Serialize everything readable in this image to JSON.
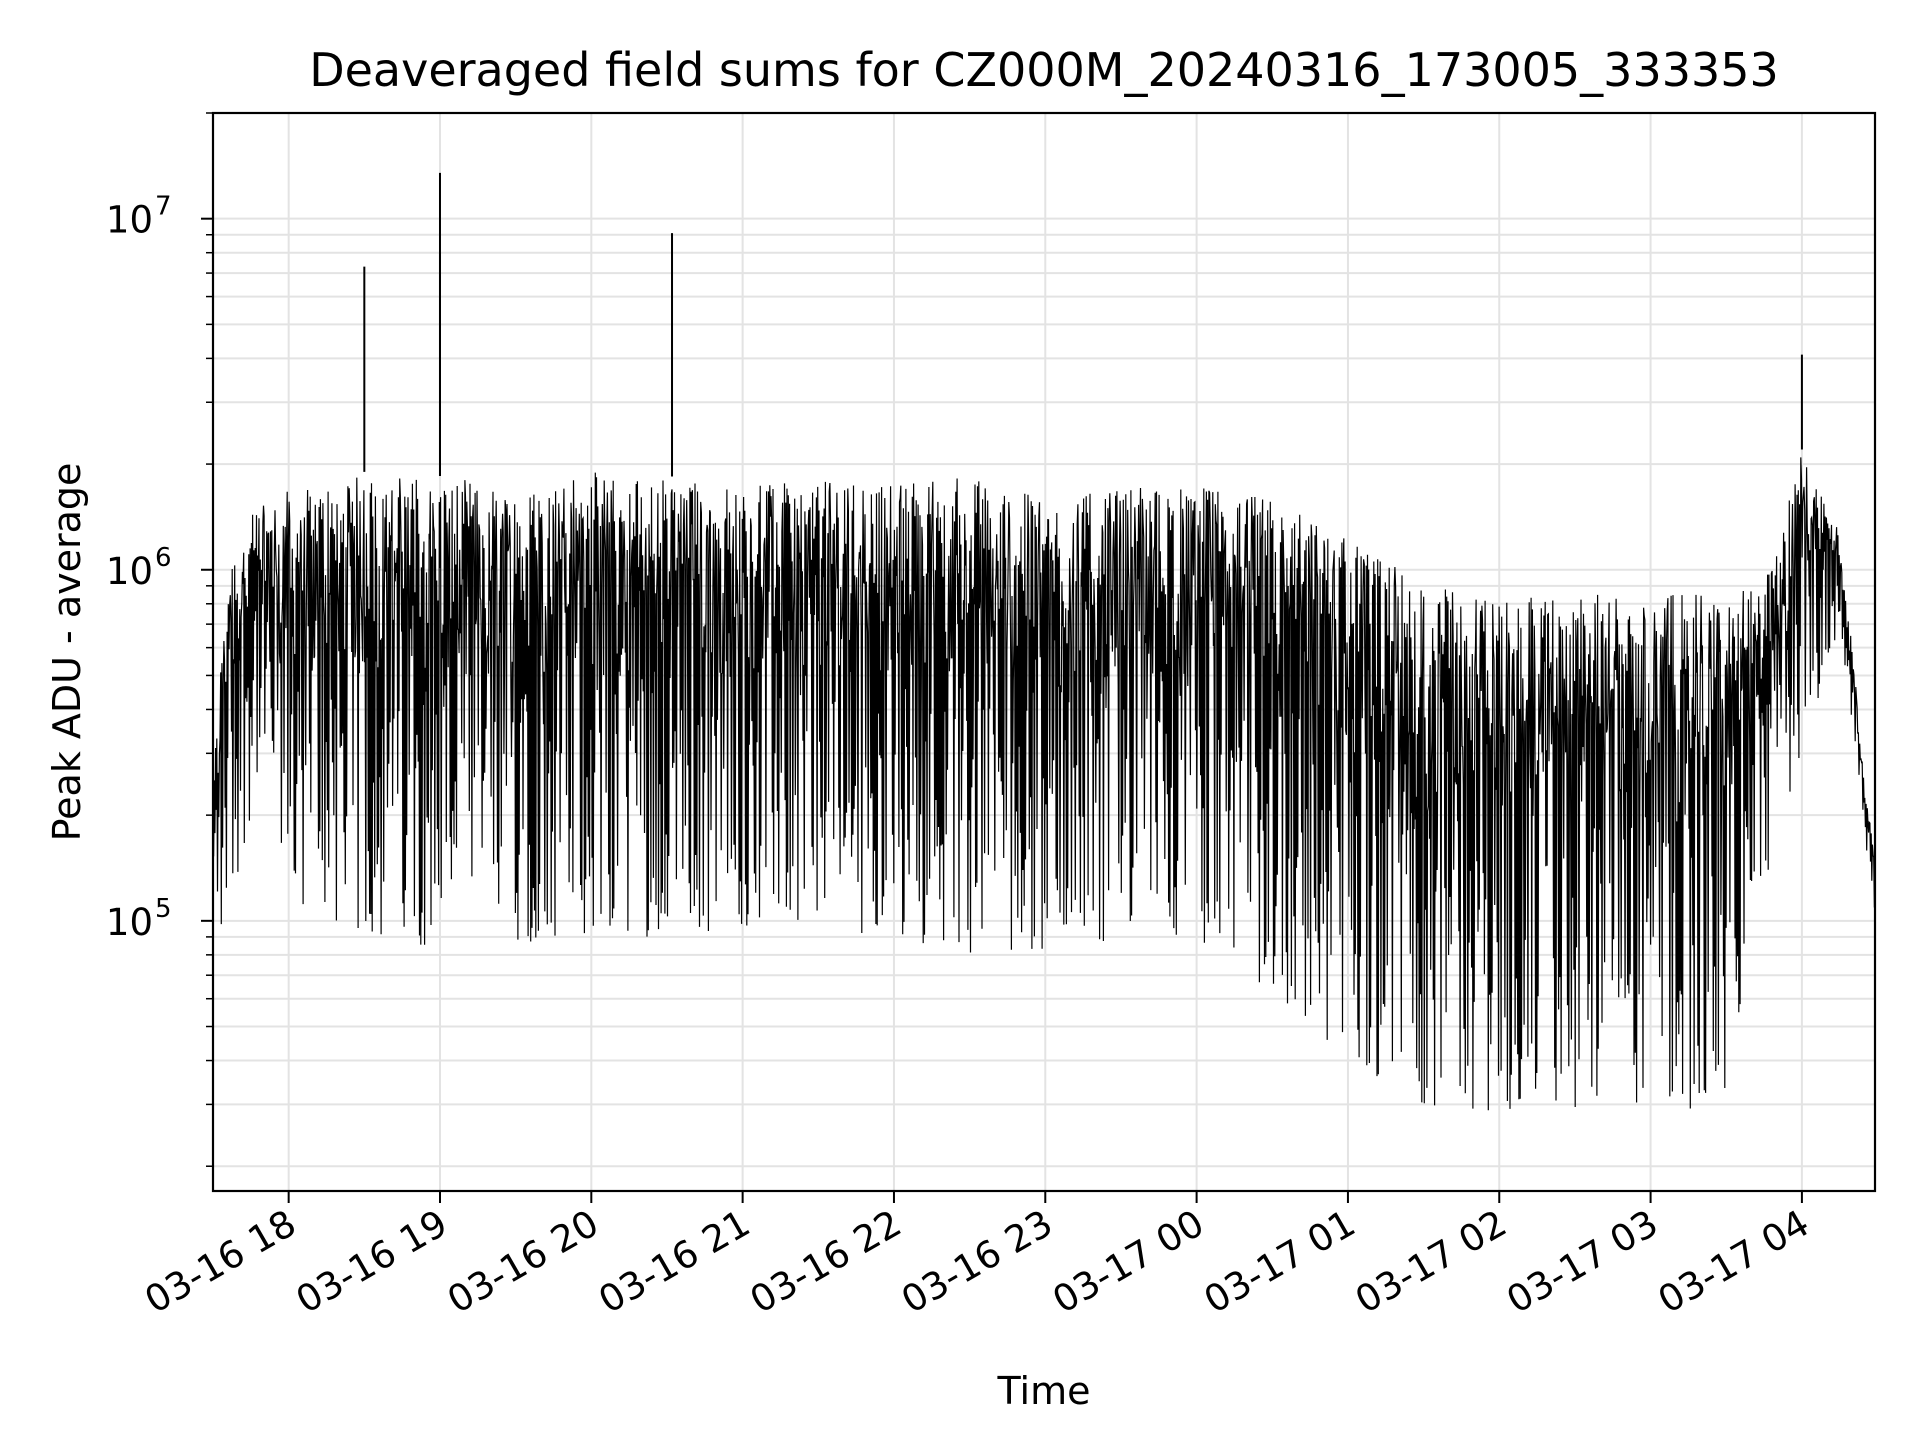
{
  "chart_data": {
    "type": "line",
    "title": "Deaveraged field sums for CZ000M_20240316_173005_333353",
    "xlabel": "Time",
    "ylabel": "Peak ADU - average",
    "yscale": "log",
    "ylim": [
      17000,
      20000000
    ],
    "xlim_hours": [
      17.5,
      28.483
    ],
    "grid": true,
    "line_color": "#000000",
    "x_tick_labels": [
      "03-16 18",
      "03-16 19",
      "03-16 20",
      "03-16 21",
      "03-16 22",
      "03-16 23",
      "03-17 00",
      "03-17 01",
      "03-17 02",
      "03-17 03",
      "03-17 04"
    ],
    "y_tick_labels": [
      {
        "base": "10",
        "exp": "5",
        "value": 100000
      },
      {
        "base": "10",
        "exp": "6",
        "value": 1000000
      },
      {
        "base": "10",
        "exp": "7",
        "value": 10000000
      }
    ],
    "series": [
      {
        "envelope": {
          "x": [
            "03-16 17:30",
            "03-16 17:36",
            "03-16 17:48",
            "03-16 18:00",
            "03-16 18:30",
            "03-16 19:00",
            "03-16 19:30",
            "03-16 20:00",
            "03-16 20:30",
            "03-16 21:00",
            "03-16 21:30",
            "03-16 22:00",
            "03-16 22:30",
            "03-16 23:00",
            "03-16 23:30",
            "03-17 00:00",
            "03-17 00:30",
            "03-17 01:00",
            "03-17 01:30",
            "03-17 02:00",
            "03-17 02:30",
            "03-17 03:00",
            "03-17 03:30",
            "03-17 03:45",
            "03-17 04:00",
            "03-17 04:15",
            "03-17 04:29"
          ],
          "upper": [
            250000,
            1200000,
            1500000,
            1700000,
            1900000,
            1850000,
            1750000,
            1900000,
            1850000,
            1750000,
            1800000,
            1800000,
            1850000,
            1600000,
            1700000,
            1750000,
            1600000,
            1250000,
            900000,
            850000,
            850000,
            850000,
            850000,
            900000,
            2200000,
            1300000,
            140000
          ],
          "lower": [
            70000,
            100000,
            250000,
            110000,
            85000,
            85000,
            85000,
            90000,
            90000,
            95000,
            95000,
            90000,
            80000,
            80000,
            90000,
            90000,
            60000,
            40000,
            30000,
            28000,
            27000,
            28000,
            30000,
            120000,
            300000,
            700000,
            100000
          ]
        },
        "spikes": [
          {
            "time": "03-16 18:30",
            "value": 7300000
          },
          {
            "time": "03-16 19:00",
            "value": 13500000
          },
          {
            "time": "03-16 19:00",
            "value": 8000000
          },
          {
            "time": "03-16 20:32",
            "value": 9100000
          },
          {
            "time": "03-17 04:00",
            "value": 4100000
          }
        ]
      }
    ]
  }
}
